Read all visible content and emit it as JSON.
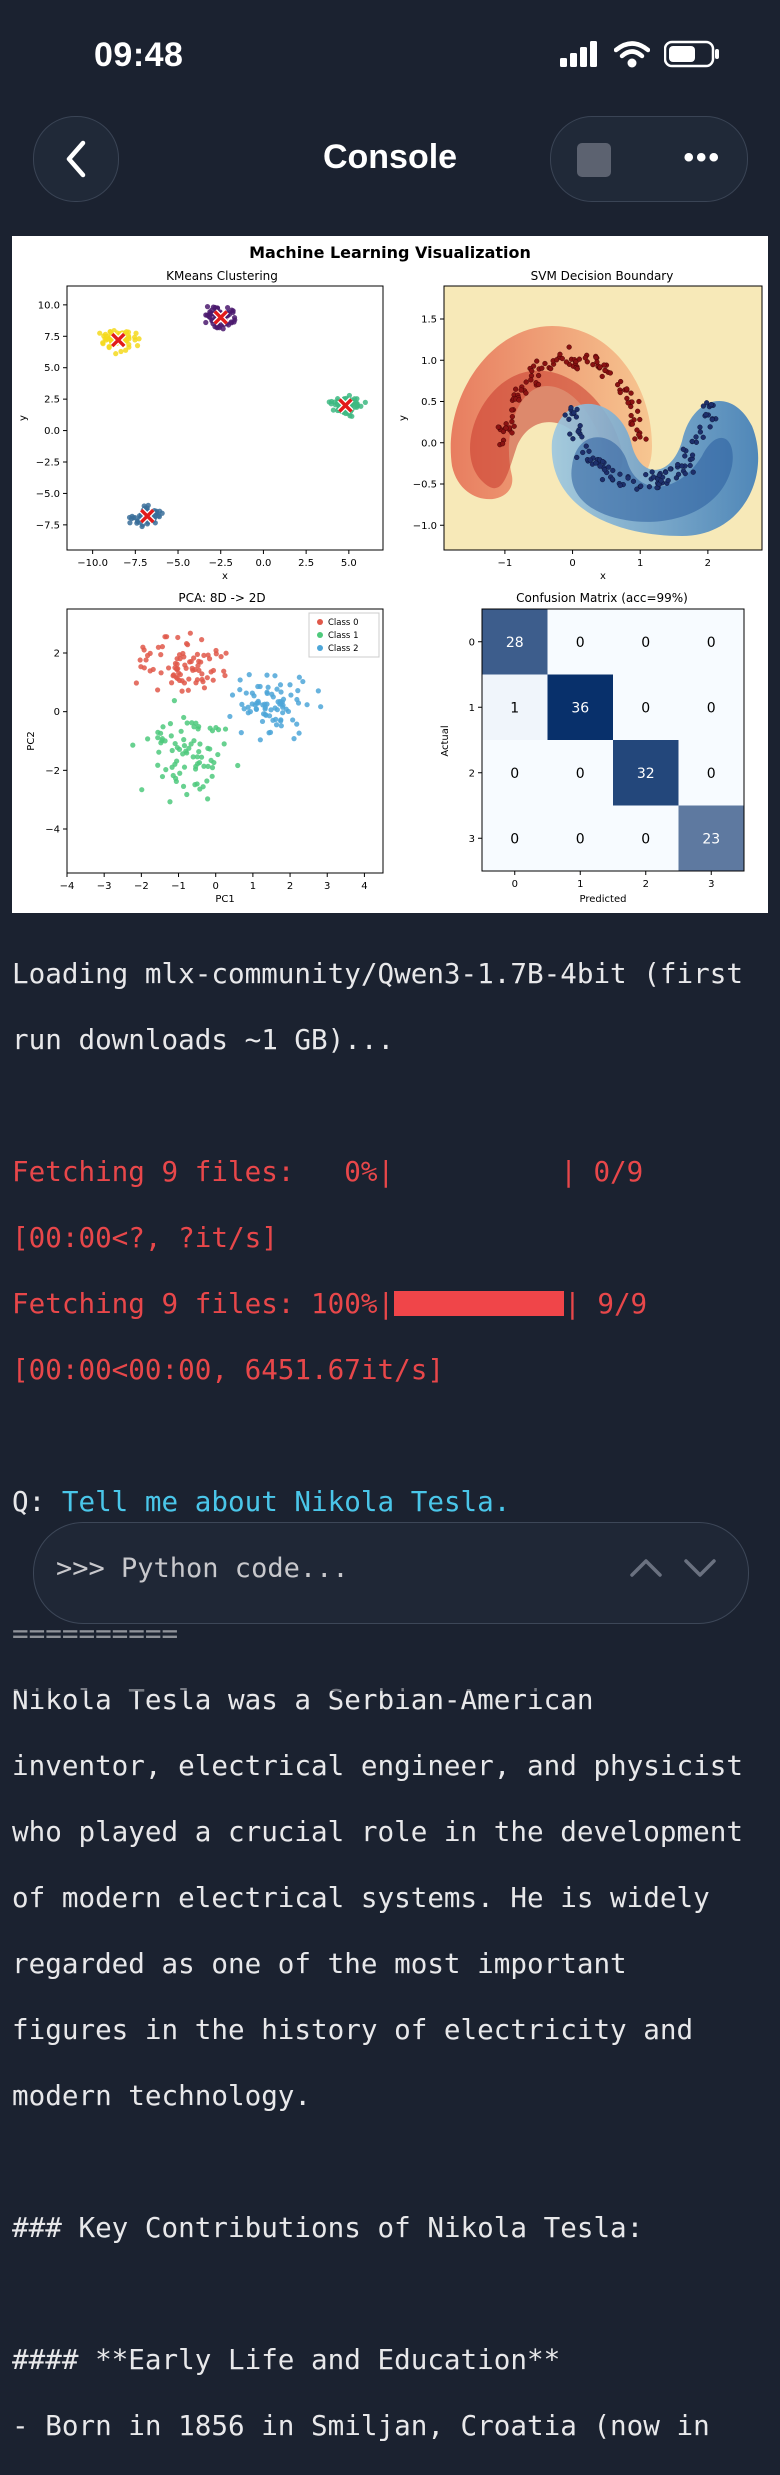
{
  "status_bar": {
    "time": "09:48"
  },
  "header": {
    "title": "Console"
  },
  "figure": {
    "suptitle": "Machine Learning Visualization",
    "kmeans": {
      "title": "KMeans Clustering",
      "xlabel": "x",
      "ylabel": "y",
      "xticks": [
        "−10.0",
        "−7.5",
        "−5.0",
        "−2.5",
        "0.0",
        "2.5",
        "5.0"
      ],
      "yticks": [
        "10.0",
        "7.5",
        "5.0",
        "2.5",
        "0.0",
        "−2.5",
        "−5.0",
        "−7.5"
      ]
    },
    "svm": {
      "title": "SVM Decision Boundary",
      "xlabel": "x",
      "ylabel": "y",
      "xticks": [
        "−1",
        "0",
        "1",
        "2"
      ],
      "yticks": [
        "1.5",
        "1.0",
        "0.5",
        "0.0",
        "−0.5",
        "−1.0"
      ]
    },
    "pca": {
      "title": "PCA: 8D -> 2D",
      "xlabel": "PC1",
      "ylabel": "PC2",
      "xticks": [
        "−4",
        "−3",
        "−2",
        "−1",
        "0",
        "1",
        "2",
        "3",
        "4"
      ],
      "yticks": [
        "2",
        "0",
        "−2",
        "−4"
      ],
      "legend": [
        "Class 0",
        "Class 1",
        "Class 2"
      ]
    },
    "confusion": {
      "title": "Confusion Matrix (acc=99%)",
      "xlabel": "Predicted",
      "ylabel": "Actual",
      "ticks": [
        "0",
        "1",
        "2",
        "3"
      ],
      "matrix": [
        [
          28,
          0,
          0,
          0
        ],
        [
          1,
          36,
          0,
          0
        ],
        [
          0,
          0,
          32,
          0
        ],
        [
          0,
          0,
          0,
          23
        ]
      ]
    }
  },
  "console": {
    "line1": "Loading mlx-community/Qwen3-1.7B-4bit (first",
    "line2": "run downloads ~1 GB)...",
    "fetch1a": "Fetching 9 files:   0%|          | 0/9",
    "fetch1b": "[00:00<?, ?it/s]",
    "fetch2a": "Fetching 9 files: 100%|",
    "fetch2b": "| 9/9",
    "fetch2c": "[00:00<00:00, 6451.67it/s]",
    "q_prefix": "Q: ",
    "question": "Tell me about Nikola Tesla.",
    "separator": "==========",
    "answer": [
      "Nikola Tesla was a Serbian-American",
      "inventor, electrical engineer, and physicist",
      "who played a crucial role in the development",
      "of modern electrical systems. He is widely",
      "regarded as one of the most important",
      "figures in the history of electricity and",
      "modern technology."
    ],
    "heading_partial": "### Key Contributions of Nikola Tesla:",
    "heading2": "#### **Early Life and Education**",
    "bullet1": "- Born in 1856 in Smiljan, Croatia (now in"
  },
  "input": {
    "placeholder": ">>> Python code..."
  },
  "chart_data": [
    {
      "type": "scatter",
      "title": "KMeans Clustering",
      "xlabel": "x",
      "ylabel": "y",
      "xlim": [
        -11.5,
        7.0
      ],
      "ylim": [
        -9.5,
        11.5
      ],
      "centers": [
        [
          -8.5,
          7.2
        ],
        [
          -2.5,
          9.0
        ],
        [
          4.8,
          2.0
        ],
        [
          -6.8,
          -6.8
        ]
      ],
      "center_colors": [
        "#f5d91d",
        "#4b1a6e",
        "#3db981",
        "#3a6f9a"
      ]
    },
    {
      "type": "heatmap",
      "title": "SVM Decision Boundary",
      "xlabel": "x",
      "ylabel": "y",
      "xlim": [
        -1.9,
        2.8
      ],
      "ylim": [
        -1.3,
        1.9
      ]
    },
    {
      "type": "scatter",
      "title": "PCA: 8D -> 2D",
      "xlabel": "PC1",
      "ylabel": "PC2",
      "xlim": [
        -4.0,
        4.5
      ],
      "ylim": [
        -5.5,
        3.5
      ],
      "series": [
        {
          "name": "Class 0",
          "color": "#e0584a"
        },
        {
          "name": "Class 1",
          "color": "#4ec97c"
        },
        {
          "name": "Class 2",
          "color": "#4da6d8"
        }
      ]
    },
    {
      "type": "heatmap",
      "title": "Confusion Matrix (acc=99%)",
      "xlabel": "Predicted",
      "ylabel": "Actual",
      "categories": [
        "0",
        "1",
        "2",
        "3"
      ],
      "values": [
        [
          28,
          0,
          0,
          0
        ],
        [
          1,
          36,
          0,
          0
        ],
        [
          0,
          0,
          32,
          0
        ],
        [
          0,
          0,
          0,
          23
        ]
      ]
    }
  ]
}
